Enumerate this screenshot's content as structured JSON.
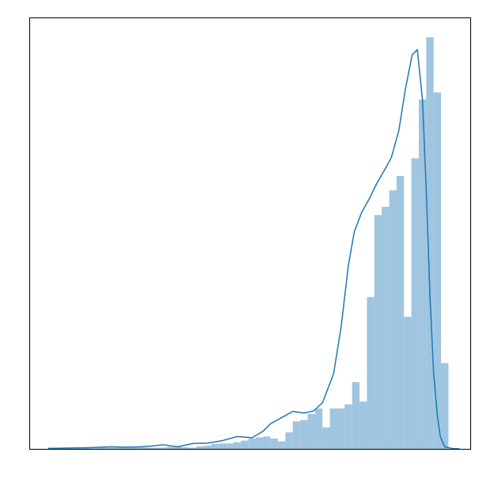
{
  "chart_data": {
    "type": "bar",
    "title": "",
    "xlabel": "",
    "ylabel": "",
    "grid": false,
    "legend": "none",
    "axes_ticks": "hidden",
    "colors": {
      "bars": "#9fc5e0",
      "kde_line": "#1f77b4",
      "frame": "#000000"
    },
    "xlim": [
      0,
      59.5
    ],
    "ylim": [
      0,
      105
    ],
    "histogram": {
      "bin_width": 1,
      "bins_start": 2.5,
      "values": [
        0.3,
        0.3,
        0.3,
        0.3,
        0.3,
        0.3,
        0.3,
        0.3,
        0.3,
        0.4,
        0.4,
        0.4,
        0.4,
        0.3,
        0.3,
        0.3,
        0.5,
        0.6,
        0.4,
        0.3,
        0.6,
        0.8,
        1.2,
        1.3,
        1.3,
        1.6,
        2.0,
        2.5,
        2.8,
        3.0,
        2.5,
        1.8,
        4.0,
        6.7,
        7.0,
        8.5,
        9.8,
        5.2,
        9.8,
        9.8,
        10.8,
        16.2,
        11.5,
        36.9,
        56.8,
        58.8,
        62.8,
        66.3,
        32.1,
        70.6,
        84.9,
        100.0,
        86.6,
        20.8
      ]
    },
    "kde": {
      "x": [
        2.5,
        5,
        8,
        11,
        13,
        15,
        16.5,
        18,
        20,
        22,
        24,
        26,
        28,
        30,
        31.5,
        32.5,
        34,
        35.5,
        37,
        38.3,
        39.5,
        41,
        42,
        43,
        43.8,
        44.8,
        45.8,
        46.8,
        47.8,
        48.8,
        49.8,
        50.7,
        51.6,
        52.3,
        53,
        53.5,
        54,
        54.5,
        55,
        55.4,
        56,
        57,
        58
      ],
      "y": [
        0.1,
        0.2,
        0.3,
        0.5,
        0.4,
        0.5,
        0.7,
        1.0,
        0.5,
        1.3,
        1.4,
        2.0,
        3.0,
        2.7,
        4.3,
        6.1,
        7.6,
        9.1,
        8.7,
        9.2,
        11.2,
        18.2,
        29.4,
        44.6,
        52.8,
        57.5,
        60.7,
        64.4,
        67.5,
        70.8,
        77.3,
        87.5,
        95.7,
        97.0,
        84.8,
        63.1,
        37.4,
        18.4,
        8.1,
        3.0,
        0.5,
        0.1,
        0.0
      ]
    }
  }
}
